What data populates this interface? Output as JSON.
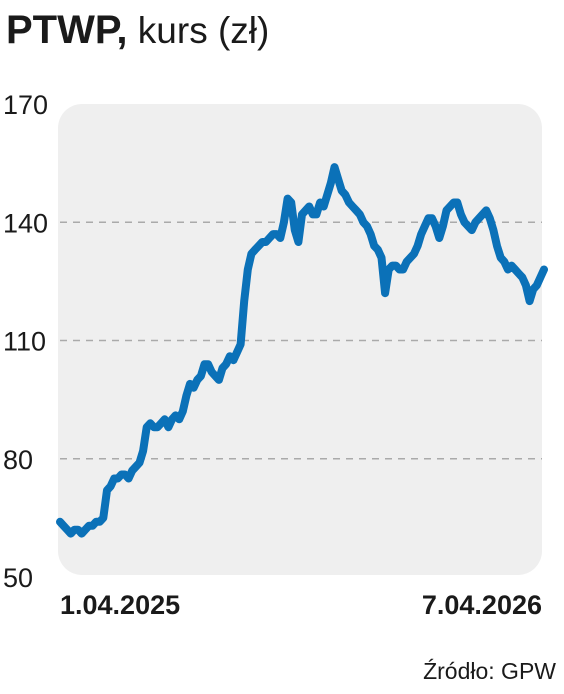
{
  "header": {
    "ticker": "PTWP,",
    "unit": "kurs (zł)"
  },
  "source": "Źródło: GPW",
  "colors": {
    "line": "#0b71b8",
    "panel": "#efefef",
    "grid": "#aaaaaa",
    "text": "#1a1a1a"
  },
  "chart_data": {
    "type": "line",
    "title": "PTWP, kurs (zł)",
    "xlabel": "",
    "ylabel": "",
    "ylim": [
      50,
      170
    ],
    "yticks": [
      170,
      140,
      110,
      80,
      50
    ],
    "grid": "horizontal dashed at 140, 110, 80",
    "xticks": [
      "1.04.2025",
      "7.04.2026"
    ],
    "x_range": [
      "2025-04-01",
      "2026-04-07"
    ],
    "series": [
      {
        "values": [
          64,
          63,
          62,
          61,
          62,
          62,
          61,
          62,
          63,
          63,
          64,
          64,
          65,
          72,
          73,
          75,
          75,
          76,
          76,
          75,
          77,
          78,
          79,
          82,
          88,
          89,
          88,
          88,
          89,
          90,
          88,
          90,
          91,
          90,
          92,
          96,
          99,
          98,
          100,
          101,
          104,
          104,
          102,
          101,
          100,
          103,
          104,
          106,
          105,
          107,
          109,
          120,
          128,
          132,
          133,
          134,
          135,
          135,
          136,
          137,
          137,
          136,
          140,
          146,
          145,
          138,
          135,
          142,
          143,
          144,
          142,
          142,
          145,
          144,
          147,
          150,
          154,
          151,
          148,
          147,
          145,
          144,
          143,
          142,
          140,
          139,
          137,
          134,
          133,
          131,
          122,
          128,
          129,
          129,
          128,
          128,
          130,
          131,
          132,
          134,
          137,
          139,
          141,
          141,
          139,
          136,
          139,
          143,
          144,
          145,
          145,
          142,
          140,
          139,
          138,
          140,
          141,
          142,
          143,
          141,
          138,
          134,
          131,
          130,
          128,
          129,
          128,
          127,
          126,
          124,
          120,
          123,
          124,
          126,
          128
        ]
      }
    ]
  }
}
